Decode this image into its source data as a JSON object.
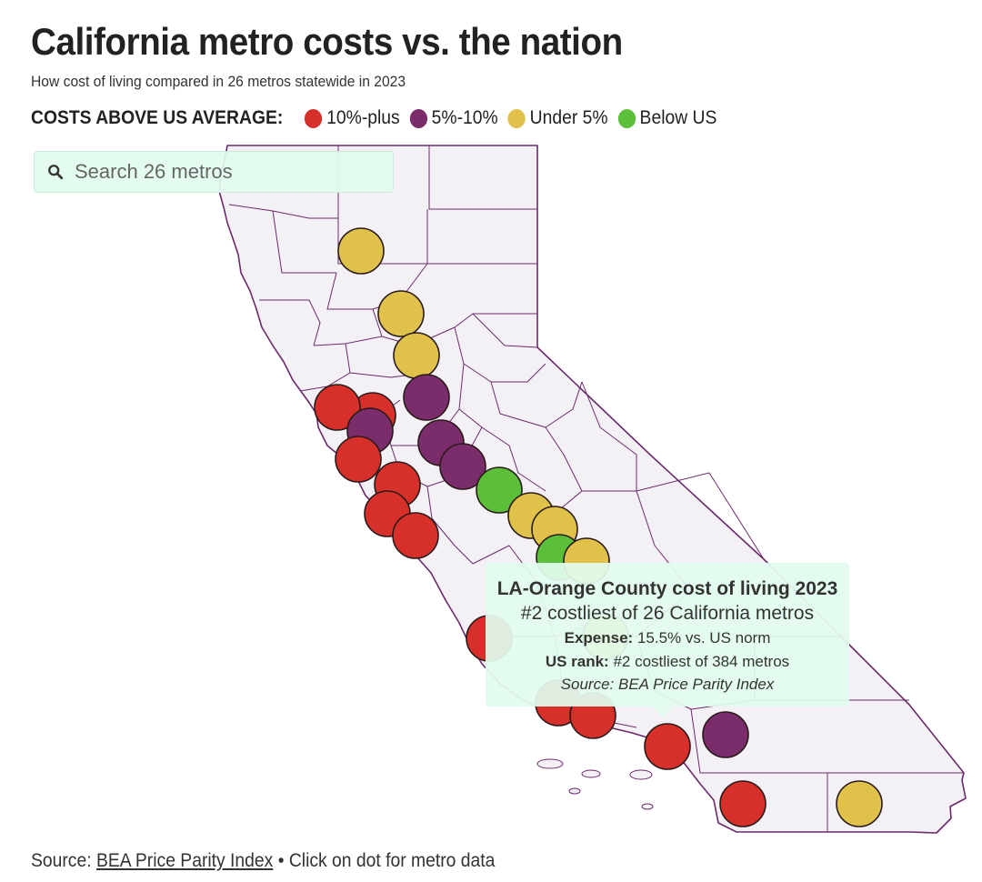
{
  "title": "California metro costs vs. the nation",
  "subtitle": "How cost of living compared in 26 metros statewide in 2023",
  "legend": {
    "label": "COSTS ABOVE US AVERAGE:",
    "items": [
      {
        "label": "10%-plus",
        "color": "#d7302a"
      },
      {
        "label": "5%-10%",
        "color": "#7a2c6b"
      },
      {
        "label": "Under 5%",
        "color": "#e0c24a"
      },
      {
        "label": "Below US",
        "color": "#5cbf3a"
      }
    ]
  },
  "search": {
    "placeholder": "Search 26 metros",
    "icon": "search-icon"
  },
  "tooltip": {
    "title": "LA-Orange County cost of living 2023",
    "rank_line": "#2 costliest of 26 California metros",
    "expense_label": "Expense:",
    "expense_value": "15.5% vs. US norm",
    "us_rank_label": "US rank:",
    "us_rank_value": "#2 costliest of 384 metros",
    "source": "Source: BEA Price Parity Index"
  },
  "footer": {
    "prefix": "Source: ",
    "link_text": "BEA Price Parity Index",
    "suffix": " • Click on dot for metro data"
  },
  "colors": {
    "map_fill": "#f3f1f6",
    "county_lines": "#6b2a6a",
    "dot_outline": "#2a1a1a"
  },
  "metro_dots": [
    {
      "category": "10%-plus"
    },
    {
      "category": "Under 5%"
    },
    {
      "category": "Under 5%"
    },
    {
      "category": "Under 5%"
    },
    {
      "category": "5%-10%"
    },
    {
      "category": "10%-plus"
    },
    {
      "category": "5%-10%"
    },
    {
      "category": "10%-plus"
    },
    {
      "category": "5%-10%"
    },
    {
      "category": "5%-10%"
    },
    {
      "category": "10%-plus"
    },
    {
      "category": "10%-plus"
    },
    {
      "category": "10%-plus"
    },
    {
      "category": "Below US"
    },
    {
      "category": "Under 5%"
    },
    {
      "category": "Under 5%"
    },
    {
      "category": "Below US"
    },
    {
      "category": "Under 5%"
    },
    {
      "category": "10%-plus"
    },
    {
      "category": "Under 5%"
    },
    {
      "category": "10%-plus"
    },
    {
      "category": "10%-plus"
    },
    {
      "category": "10%-plus"
    },
    {
      "category": "5%-10%"
    },
    {
      "category": "10%-plus"
    },
    {
      "category": "Under 5%"
    }
  ]
}
